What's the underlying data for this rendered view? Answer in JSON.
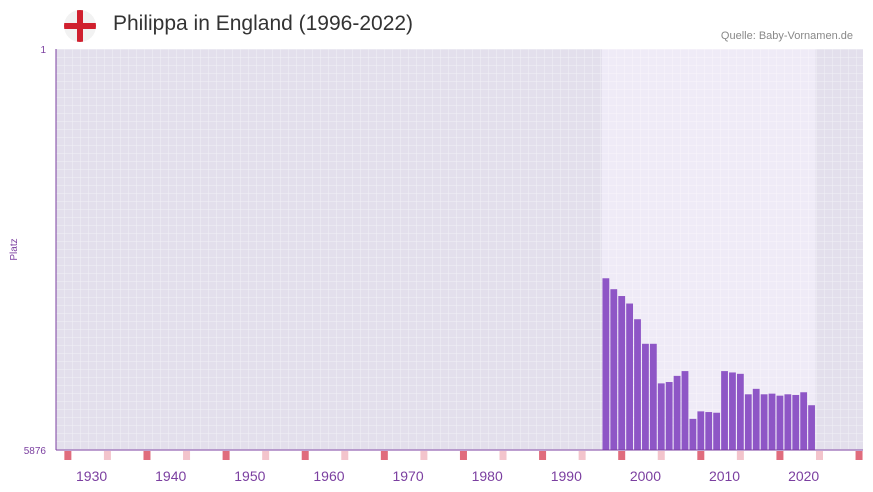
{
  "header": {
    "title": "Philippa in England (1996-2022)",
    "source": "Quelle: Baby-Vornamen.de",
    "flag_icon": "england-flag-icon"
  },
  "colors": {
    "bar": "#8e56c6",
    "plot_bg": "#e3dfec",
    "plot_bg_highlight": "#efebf7",
    "marker": "#e06c7d",
    "marker_light": "#f3c4cc",
    "axis": "#7b3fa0"
  },
  "chart_data": {
    "type": "bar",
    "title": "Philippa in England (1996-2022)",
    "ylabel": "Platz",
    "xlabel": "",
    "y_reversed": true,
    "ylim": [
      1,
      5876
    ],
    "y_ticks": [
      "1",
      "5876"
    ],
    "xlim": [
      1926.5,
      2028.5
    ],
    "x_ticks": [
      1930,
      1940,
      1950,
      1960,
      1970,
      1980,
      1990,
      2000,
      2010,
      2020
    ],
    "highlight_range": [
      1996,
      2022
    ],
    "years": [
      1996,
      1997,
      1998,
      1999,
      2000,
      2001,
      2002,
      2003,
      2004,
      2005,
      2006,
      2007,
      2008,
      2009,
      2010,
      2011,
      2012,
      2013,
      2014,
      2015,
      2016,
      2017,
      2018,
      2019,
      2020,
      2021,
      2022
    ],
    "values": [
      3360,
      3520,
      3620,
      3730,
      3960,
      4320,
      4320,
      4900,
      4880,
      4790,
      4720,
      5420,
      5310,
      5320,
      5330,
      4720,
      4740,
      4760,
      5060,
      4980,
      5060,
      5050,
      5080,
      5060,
      5070,
      5030,
      5220
    ],
    "decade_markers": [
      1928,
      1938,
      1948,
      1958,
      1968,
      1978,
      1988,
      1998,
      2008,
      2018,
      2028
    ],
    "half_markers": [
      1933,
      1943,
      1953,
      1963,
      1973,
      1983,
      1993,
      2003,
      2013,
      2023
    ]
  }
}
